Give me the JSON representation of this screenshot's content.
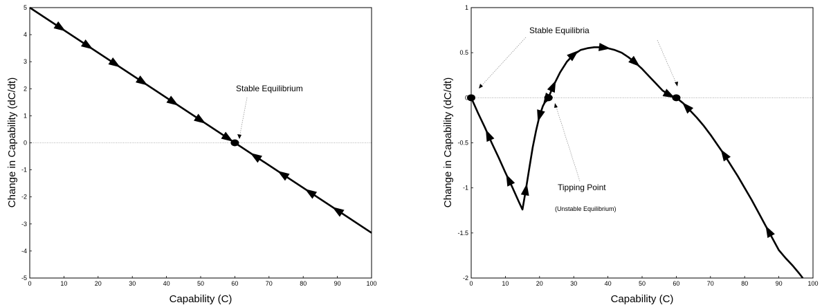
{
  "chart_data": [
    {
      "type": "line",
      "xlabel": "Capability (C)",
      "ylabel": "Change in Capability (dC/dt)",
      "xlim": [
        0,
        100
      ],
      "ylim": [
        -5,
        5
      ],
      "xticks": [
        "0",
        "10",
        "20",
        "30",
        "40",
        "50",
        "60",
        "70",
        "80",
        "90",
        "100"
      ],
      "yticks": [
        "5",
        "4",
        "3",
        "2",
        "1",
        "0",
        "-1",
        "-2",
        "-3",
        "-4",
        "-5"
      ],
      "grid": false,
      "zero_line": true,
      "series": [
        {
          "x": [
            0,
            100
          ],
          "y": [
            5,
            -3.33
          ],
          "arrow_x": [
            9,
            17,
            25,
            33,
            42,
            50,
            58,
            66,
            74,
            82,
            90
          ],
          "arrow_dir": [
            "right",
            "right",
            "right",
            "right",
            "right",
            "right",
            "right",
            "left",
            "left",
            "left",
            "left"
          ]
        }
      ],
      "points": [
        {
          "x": 60,
          "y": 0
        }
      ],
      "annotations": [
        {
          "text": "Stable Equilibrium",
          "x": 60,
          "y": 0
        }
      ]
    },
    {
      "type": "line",
      "xlabel": "Capability (C)",
      "ylabel": "Change in Capability (dC/dt)",
      "xlim": [
        0,
        100
      ],
      "ylim": [
        -2,
        1
      ],
      "xticks": [
        "0",
        "10",
        "20",
        "30",
        "40",
        "50",
        "60",
        "70",
        "80",
        "90",
        "100"
      ],
      "yticks": [
        "1",
        "0.5",
        "0",
        "-0.5",
        "-1",
        "-1.5",
        "-2"
      ],
      "grid": false,
      "zero_line": true,
      "series": [
        {
          "x": [
            0,
            2,
            4,
            6,
            8,
            10,
            12,
            14,
            15,
            16,
            17,
            18,
            19,
            20,
            21,
            22,
            22.6,
            24,
            26,
            28,
            30,
            32,
            34,
            36,
            38,
            40,
            42,
            44,
            46,
            48,
            50,
            52,
            54,
            56,
            58,
            60,
            62,
            64,
            66,
            68,
            70,
            72,
            74,
            76,
            78,
            80,
            82,
            84,
            86,
            88,
            90,
            92,
            94,
            96,
            97
          ],
          "y": [
            0,
            -0.17,
            -0.33,
            -0.5,
            -0.66,
            -0.83,
            -0.99,
            -1.16,
            -1.24,
            -1.02,
            -0.78,
            -0.55,
            -0.36,
            -0.2,
            -0.09,
            -0.02,
            0,
            0.13,
            0.28,
            0.4,
            0.48,
            0.53,
            0.55,
            0.56,
            0.56,
            0.55,
            0.53,
            0.5,
            0.45,
            0.39,
            0.32,
            0.24,
            0.16,
            0.08,
            0.03,
            0,
            -0.06,
            -0.14,
            -0.22,
            -0.31,
            -0.41,
            -0.52,
            -0.63,
            -0.75,
            -0.87,
            -1.0,
            -1.13,
            -1.27,
            -1.41,
            -1.55,
            -1.69,
            -1.78,
            -1.86,
            -1.95,
            -2.0
          ],
          "arrow_x": [
            5,
            11,
            16,
            20,
            22,
            24,
            30,
            39,
            48,
            58,
            63,
            74,
            87
          ],
          "arrow_dir": [
            "left",
            "left",
            "right",
            "left",
            "left",
            "right",
            "right",
            "right",
            "right",
            "right",
            "left",
            "left",
            "left"
          ]
        }
      ],
      "points": [
        {
          "x": 0,
          "y": 0
        },
        {
          "x": 22.6,
          "y": 0
        },
        {
          "x": 60,
          "y": 0
        }
      ],
      "annotations": [
        {
          "text": "Stable Equilibria",
          "targets": [
            [
              1,
              0.05
            ],
            [
              60,
              0.05
            ]
          ]
        },
        {
          "text": "Tipping Point",
          "target": [
            23,
            -0.05
          ]
        },
        {
          "text": "(Unstable Equilibrium)",
          "target": null
        }
      ]
    }
  ]
}
